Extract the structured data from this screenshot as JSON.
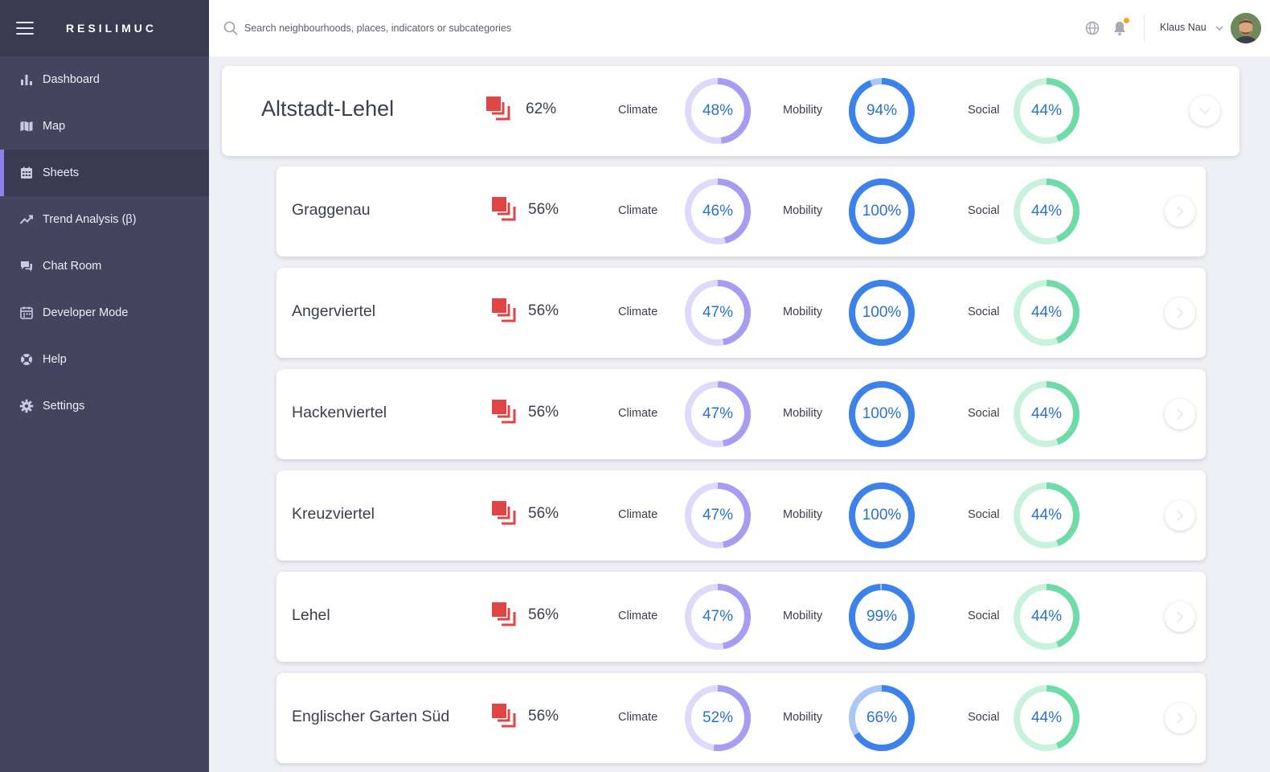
{
  "app": {
    "brand": "RESILIMUC"
  },
  "sidebar": {
    "items": [
      {
        "label": "Dashboard",
        "icon": "bar-chart-icon",
        "active": false
      },
      {
        "label": "Map",
        "icon": "map-icon",
        "active": false
      },
      {
        "label": "Sheets",
        "icon": "calendar-grid-icon",
        "active": true
      },
      {
        "label": "Trend Analysis (β)",
        "icon": "trend-icon",
        "active": false
      },
      {
        "label": "Chat Room",
        "icon": "chat-icon",
        "active": false
      },
      {
        "label": "Developer Mode",
        "icon": "calendar-icon",
        "active": false
      },
      {
        "label": "Help",
        "icon": "lifebuoy-icon",
        "active": false
      },
      {
        "label": "Settings",
        "icon": "gear-icon",
        "active": false
      }
    ]
  },
  "header": {
    "search_placeholder": "Search neighbourhoods, places, indicators or subcategories",
    "user_name": "Klaus Nau",
    "notification_dot": true
  },
  "colors": {
    "sidebar_bg": "#44445f",
    "sidebar_dark": "#3a3a53",
    "active_accent": "#8e80ef",
    "score_icon": "#e04545",
    "climate_ring": "#a69cf2",
    "climate_track": "#dedafb",
    "mobility_ring": "#3d82ea",
    "mobility_track": "#a9c8f6",
    "social_ring": "#6fdba8",
    "social_track": "#c9f2de",
    "gauge_text": "#2a73c6"
  },
  "labels": {
    "climate": "Climate",
    "mobility": "Mobility",
    "social": "Social"
  },
  "district": {
    "name": "Altstadt-Lehel",
    "score": "62%",
    "climate": 48,
    "mobility": 94,
    "social": 44,
    "expanded": true
  },
  "neighbourhoods": [
    {
      "name": "Graggenau",
      "score": "56%",
      "climate": 46,
      "mobility": 100,
      "social": 44
    },
    {
      "name": "Angerviertel",
      "score": "56%",
      "climate": 47,
      "mobility": 100,
      "social": 44
    },
    {
      "name": "Hackenviertel",
      "score": "56%",
      "climate": 47,
      "mobility": 100,
      "social": 44
    },
    {
      "name": "Kreuzviertel",
      "score": "56%",
      "climate": 47,
      "mobility": 100,
      "social": 44
    },
    {
      "name": "Lehel",
      "score": "56%",
      "climate": 47,
      "mobility": 99,
      "social": 44
    },
    {
      "name": "Englischer Garten Süd",
      "score": "56%",
      "climate": 52,
      "mobility": 66,
      "social": 44
    }
  ]
}
